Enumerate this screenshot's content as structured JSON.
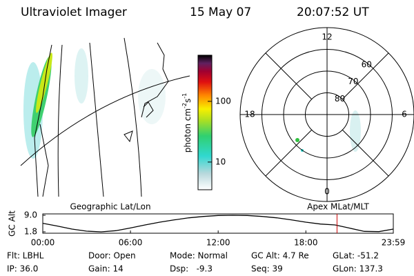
{
  "header": {
    "instrument": "Ultraviolet Imager",
    "date": "15 May 07",
    "time": "20:07:52 UT"
  },
  "panels": {
    "left_title": "Geographic Lat/Lon",
    "right_title": "Apex MLat/MLT"
  },
  "colorbar": {
    "label_parts": [
      "photon cm",
      "-2",
      "s",
      "-1"
    ],
    "lim": [
      3.5,
      575
    ],
    "ticks": [
      10,
      100
    ],
    "log": true
  },
  "polar": {
    "rlim": [
      90,
      50
    ],
    "lat_ticks": [
      60,
      70,
      80
    ],
    "mlt_labels": [
      12,
      18,
      6,
      0
    ]
  },
  "chart_data": {
    "type": "line",
    "y_label": "GC Alt",
    "x": [
      0,
      1,
      2,
      3,
      4,
      5,
      6,
      7,
      8,
      9,
      10,
      11,
      12,
      13,
      14,
      15,
      16,
      17,
      18,
      19,
      20,
      21,
      22,
      23,
      23.983
    ],
    "series": [
      {
        "name": "GC Alt",
        "color": "#000000",
        "values": [
          5.5,
          4.3,
          3.0,
          2.1,
          1.8,
          2.3,
          3.5,
          4.8,
          6.0,
          7.0,
          7.9,
          8.5,
          8.9,
          9.0,
          8.9,
          8.5,
          7.9,
          7.0,
          6.0,
          5.2,
          4.8,
          3.4,
          2.0,
          1.9,
          3.0
        ]
      }
    ],
    "xlim": [
      0,
      23.983
    ],
    "ylim": [
      1.2,
      9.6
    ],
    "xticks": [
      {
        "value": 0,
        "label": "00:00"
      },
      {
        "value": 6,
        "label": "06:00"
      },
      {
        "value": 12,
        "label": "12:00"
      },
      {
        "value": 18,
        "label": "18:00"
      },
      {
        "value": 23.983,
        "label": "23:59"
      }
    ],
    "yticks": [
      {
        "value": 9.0,
        "label": "9.0"
      },
      {
        "value": 1.8,
        "label": "1.8"
      }
    ],
    "marker_x": 20.131,
    "marker_color": "#cc0000"
  },
  "footer": [
    "Flt: LBHL",
    "IP: 36.0",
    "Door: Open",
    "Gain: 14",
    "Mode: Normal",
    "Dsp:   -9.3",
    "GC Alt: 4.7 Re",
    "Seq: 39",
    "GLat: -51.2",
    "GLon: 137.3"
  ]
}
